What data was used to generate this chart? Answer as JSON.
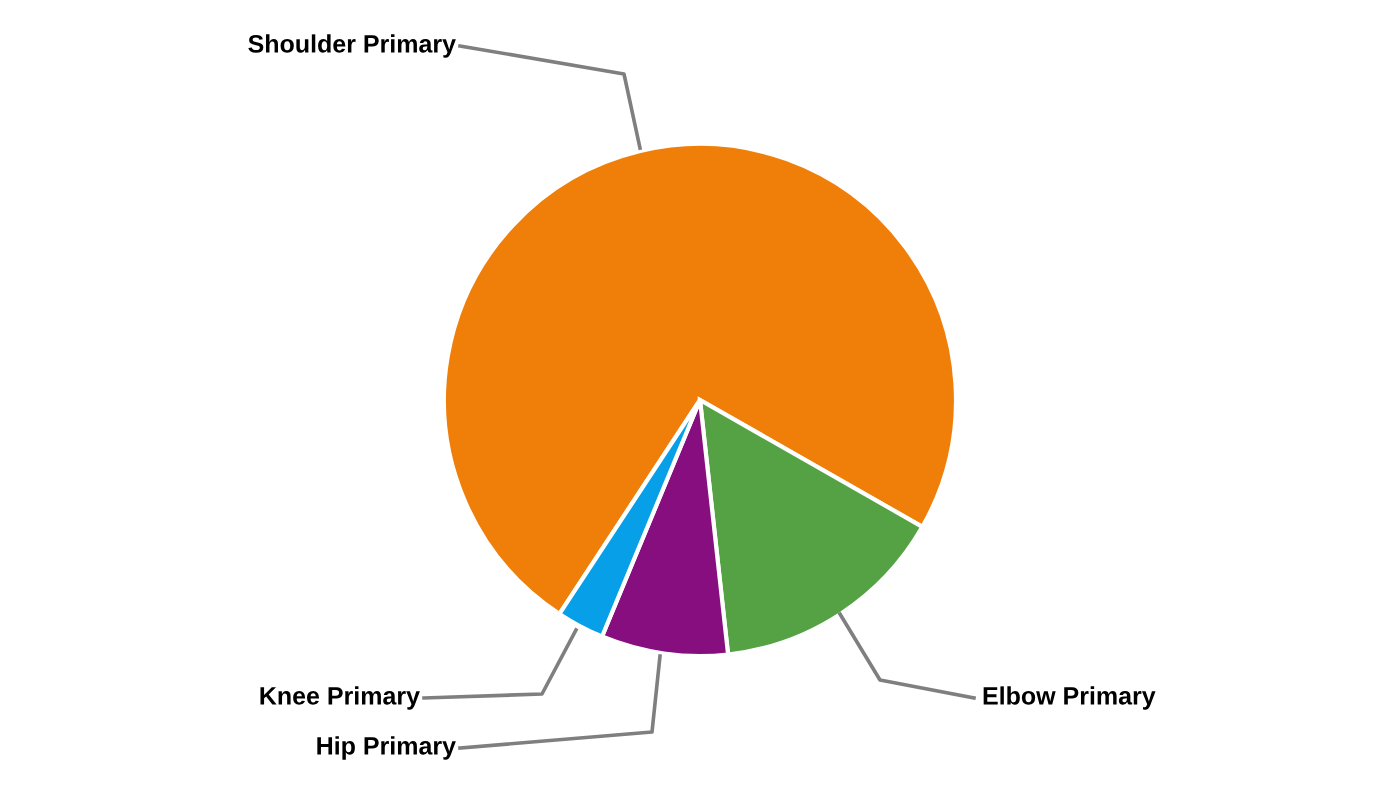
{
  "chart_data": {
    "type": "pie",
    "categories": [
      "Shoulder Primary",
      "Elbow Primary",
      "Hip Primary",
      "Knee Primary"
    ],
    "values": [
      74,
      15,
      8,
      3
    ],
    "colors": [
      "#f07f09",
      "#54a244",
      "#870e7e",
      "#069fe8"
    ]
  }
}
